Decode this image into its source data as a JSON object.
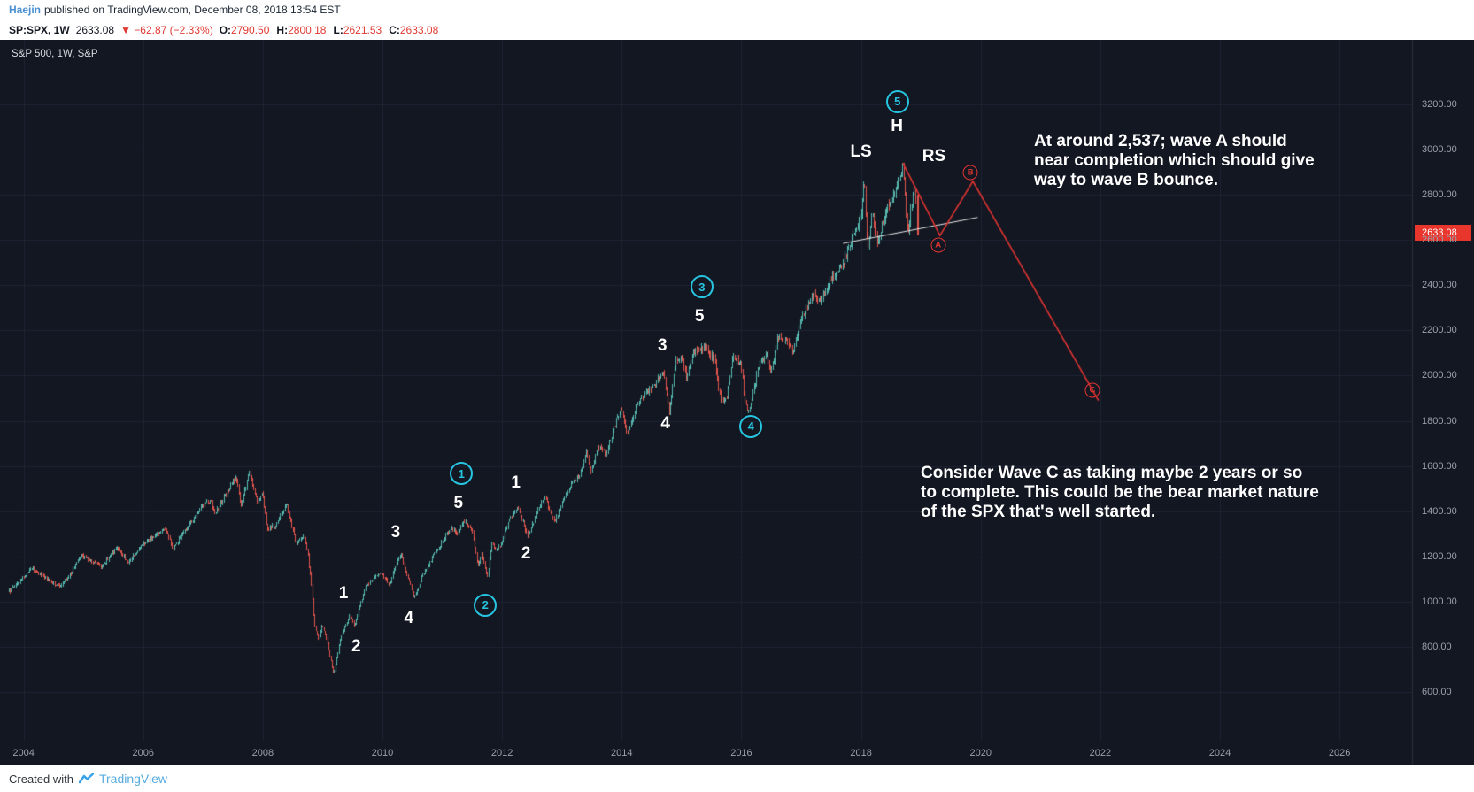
{
  "attribution": {
    "username": "Haejin",
    "text": "published on TradingView.com, December 08, 2018 13:54 EST"
  },
  "symbol_bar": {
    "symbol": "SP:SPX, 1W",
    "last": "2633.08",
    "change": "▼ −62.87 (−2.33%)",
    "ohlc": [
      {
        "label": "O:",
        "value": "2790.50"
      },
      {
        "label": "H:",
        "value": "2800.18"
      },
      {
        "label": "L:",
        "value": "2621.53"
      },
      {
        "label": "C:",
        "value": "2633.08"
      }
    ]
  },
  "legend": {
    "text": "S&P 500, 1W, S&P"
  },
  "price_scale": {
    "badge": "2633.08"
  },
  "notes": {
    "wave_a": "At around 2,537; wave A should\nnear completion which should give\nway to wave B bounce.",
    "wave_c": "Consider Wave C as taking maybe 2 years or so\nto complete. This could be the bear market nature\nof the SPX that's well started."
  },
  "footer": {
    "created_with": "Created with",
    "brand": "TradingView"
  },
  "chart_data": {
    "type": "candlestick",
    "title": "S&P 500, 1W, S&P",
    "timeframe": "1W",
    "x_axis": {
      "ticks": [
        2004,
        2006,
        2008,
        2010,
        2012,
        2014,
        2016,
        2018,
        2020,
        2022,
        2024,
        2026
      ],
      "range_years": [
        2003.6,
        2027.6
      ]
    },
    "y_axis": {
      "ticks": [
        3200,
        3000,
        2800,
        2600,
        2400,
        2200,
        2000,
        1800,
        1600,
        1400,
        1200,
        1000,
        800,
        600
      ],
      "format": "0.00"
    },
    "last_price": 2633.08,
    "last_candle": {
      "year": 2018.94,
      "open": 2790.5,
      "high": 2800.18,
      "low": 2621.53,
      "close": 2633.08
    },
    "candles_start": 2003.75,
    "candles_end": 2018.92,
    "anchors": [
      [
        2003.75,
        1045
      ],
      [
        2004.0,
        1112
      ],
      [
        2004.15,
        1146
      ],
      [
        2004.35,
        1107
      ],
      [
        2004.6,
        1065
      ],
      [
        2004.8,
        1132
      ],
      [
        2004.97,
        1208
      ],
      [
        2005.1,
        1181
      ],
      [
        2005.3,
        1156
      ],
      [
        2005.55,
        1236
      ],
      [
        2005.75,
        1178
      ],
      [
        2005.97,
        1250
      ],
      [
        2006.2,
        1290
      ],
      [
        2006.36,
        1322
      ],
      [
        2006.5,
        1237
      ],
      [
        2006.75,
        1336
      ],
      [
        2006.97,
        1420
      ],
      [
        2007.12,
        1448
      ],
      [
        2007.2,
        1388
      ],
      [
        2007.42,
        1498
      ],
      [
        2007.55,
        1552
      ],
      [
        2007.63,
        1428
      ],
      [
        2007.77,
        1572
      ],
      [
        2007.9,
        1446
      ],
      [
        2007.99,
        1478
      ],
      [
        2008.07,
        1322
      ],
      [
        2008.2,
        1332
      ],
      [
        2008.4,
        1426
      ],
      [
        2008.55,
        1252
      ],
      [
        2008.67,
        1298
      ],
      [
        2008.74,
        1228
      ],
      [
        2008.8,
        1092
      ],
      [
        2008.86,
        902
      ],
      [
        2008.92,
        832
      ],
      [
        2008.99,
        898
      ],
      [
        2009.07,
        822
      ],
      [
        2009.18,
        680
      ],
      [
        2009.3,
        846
      ],
      [
        2009.45,
        936
      ],
      [
        2009.53,
        892
      ],
      [
        2009.7,
        1062
      ],
      [
        2009.85,
        1106
      ],
      [
        2009.98,
        1126
      ],
      [
        2010.1,
        1072
      ],
      [
        2010.3,
        1212
      ],
      [
        2010.45,
        1080
      ],
      [
        2010.53,
        1022
      ],
      [
        2010.65,
        1106
      ],
      [
        2010.82,
        1192
      ],
      [
        2010.98,
        1258
      ],
      [
        2011.15,
        1332
      ],
      [
        2011.25,
        1296
      ],
      [
        2011.35,
        1364
      ],
      [
        2011.5,
        1318
      ],
      [
        2011.59,
        1152
      ],
      [
        2011.66,
        1212
      ],
      [
        2011.75,
        1108
      ],
      [
        2011.83,
        1272
      ],
      [
        2011.9,
        1222
      ],
      [
        2011.99,
        1258
      ],
      [
        2012.1,
        1362
      ],
      [
        2012.26,
        1416
      ],
      [
        2012.43,
        1288
      ],
      [
        2012.6,
        1408
      ],
      [
        2012.71,
        1468
      ],
      [
        2012.86,
        1352
      ],
      [
        2012.99,
        1432
      ],
      [
        2013.15,
        1516
      ],
      [
        2013.3,
        1566
      ],
      [
        2013.4,
        1662
      ],
      [
        2013.48,
        1582
      ],
      [
        2013.62,
        1692
      ],
      [
        2013.72,
        1646
      ],
      [
        2013.9,
        1802
      ],
      [
        2013.99,
        1846
      ],
      [
        2014.09,
        1746
      ],
      [
        2014.25,
        1876
      ],
      [
        2014.4,
        1926
      ],
      [
        2014.55,
        1962
      ],
      [
        2014.7,
        2012
      ],
      [
        2014.79,
        1842
      ],
      [
        2014.9,
        2066
      ],
      [
        2014.99,
        2082
      ],
      [
        2015.08,
        1992
      ],
      [
        2015.2,
        2106
      ],
      [
        2015.38,
        2128
      ],
      [
        2015.55,
        2068
      ],
      [
        2015.64,
        1902
      ],
      [
        2015.74,
        1884
      ],
      [
        2015.85,
        2086
      ],
      [
        2015.99,
        2048
      ],
      [
        2016.06,
        1876
      ],
      [
        2016.12,
        1832
      ],
      [
        2016.3,
        2062
      ],
      [
        2016.42,
        2092
      ],
      [
        2016.49,
        2004
      ],
      [
        2016.6,
        2172
      ],
      [
        2016.75,
        2156
      ],
      [
        2016.85,
        2092
      ],
      [
        2016.99,
        2250
      ],
      [
        2017.2,
        2362
      ],
      [
        2017.32,
        2332
      ],
      [
        2017.5,
        2436
      ],
      [
        2017.65,
        2472
      ],
      [
        2017.8,
        2562
      ],
      [
        2017.99,
        2692
      ],
      [
        2018.05,
        2868
      ],
      [
        2018.11,
        2546
      ],
      [
        2018.18,
        2742
      ],
      [
        2018.26,
        2586
      ],
      [
        2018.4,
        2722
      ],
      [
        2018.55,
        2802
      ],
      [
        2018.69,
        2936
      ],
      [
        2018.78,
        2608
      ],
      [
        2018.83,
        2742
      ],
      [
        2018.88,
        2812
      ],
      [
        2018.92,
        2758
      ]
    ],
    "wave_labels": [
      {
        "text": "1",
        "year": 2009.35,
        "price": 1035,
        "style": "wave-plain"
      },
      {
        "text": "2",
        "year": 2009.56,
        "price": 800,
        "style": "wave-plain"
      },
      {
        "text": "3",
        "year": 2010.22,
        "price": 1305,
        "style": "wave-plain"
      },
      {
        "text": "4",
        "year": 2010.44,
        "price": 925,
        "style": "wave-plain"
      },
      {
        "text": "5",
        "year": 2011.27,
        "price": 1434,
        "style": "wave-plain"
      },
      {
        "text": "1",
        "year": 2012.23,
        "price": 1524,
        "style": "wave-plain"
      },
      {
        "text": "2",
        "year": 2012.4,
        "price": 1211,
        "style": "wave-plain"
      },
      {
        "text": "3",
        "year": 2014.68,
        "price": 2131,
        "style": "wave-plain"
      },
      {
        "text": "4",
        "year": 2014.73,
        "price": 1786,
        "style": "wave-plain"
      },
      {
        "text": "5",
        "year": 2015.3,
        "price": 2260,
        "style": "wave-plain"
      },
      {
        "text": "LS",
        "year": 2018.0,
        "price": 2989,
        "style": "wave-plain"
      },
      {
        "text": "H",
        "year": 2018.6,
        "price": 3102,
        "style": "wave-plain"
      },
      {
        "text": "RS",
        "year": 2019.22,
        "price": 2969,
        "style": "wave-plain"
      },
      {
        "text": "1",
        "year": 2011.32,
        "price": 1567,
        "style": "wave-cyan"
      },
      {
        "text": "2",
        "year": 2011.72,
        "price": 984,
        "style": "wave-cyan"
      },
      {
        "text": "3",
        "year": 2015.34,
        "price": 2393,
        "style": "wave-cyan"
      },
      {
        "text": "4",
        "year": 2016.16,
        "price": 1775,
        "style": "wave-cyan"
      },
      {
        "text": "5",
        "year": 2018.61,
        "price": 3212,
        "style": "wave-cyan"
      },
      {
        "text": "A",
        "year": 2019.29,
        "price": 2577,
        "style": "wave-red"
      },
      {
        "text": "B",
        "year": 2019.83,
        "price": 2899,
        "style": "wave-red"
      },
      {
        "text": "C",
        "year": 2021.87,
        "price": 1935,
        "style": "wave-red"
      }
    ],
    "projection_path": [
      [
        2018.7,
        2940
      ],
      [
        2019.32,
        2620
      ],
      [
        2019.87,
        2860
      ],
      [
        2021.97,
        1890
      ]
    ],
    "neckline": [
      [
        2017.7,
        2585
      ],
      [
        2019.95,
        2700
      ]
    ],
    "colors": {
      "background": "#131722",
      "grid": "#1e2433",
      "separator": "#2a2e39",
      "up": "#56b7ae",
      "down": "#e0544c",
      "projection": "#e13431",
      "neckline": "#e8e8e8",
      "wave_cyan": "#27c4e0",
      "axis_text": "#9aa0ac",
      "badge_bg": "#e8362d"
    }
  }
}
